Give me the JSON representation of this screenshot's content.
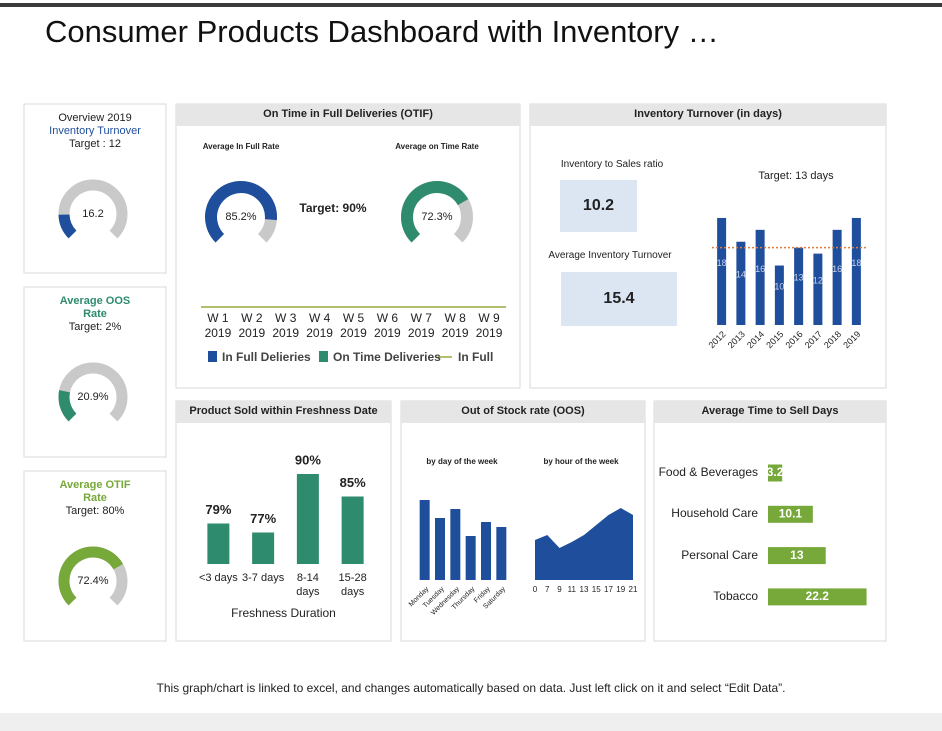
{
  "title": "Consumer Products Dashboard with Inventory …",
  "footer": "This graph/chart is linked to excel, and changes automatically based on data. Just left click on it and select “Edit Data”.",
  "chart_data": [
    {
      "type": "gauge",
      "title": "Overview 2019",
      "subtitle": "Inventory Turnover",
      "target_label": "Target : 12",
      "value": 16.2,
      "ylim": [
        0,
        100
      ],
      "color": "#1f4e9c"
    },
    {
      "type": "gauge",
      "title": "Average OOS Rate",
      "target_label": "Target: 2%",
      "value": 20.9,
      "value_label": "20.9%",
      "ylim": [
        0,
        100
      ],
      "color": "#2e8b6e"
    },
    {
      "type": "gauge",
      "title": "Average OTIF Rate",
      "target_label": "Target: 80%",
      "value": 72.4,
      "value_label": "72.4%",
      "ylim": [
        0,
        100
      ],
      "color": "#77a83a"
    },
    {
      "type": "bar",
      "title": "On Time in Full Deliveries (OTIF)",
      "target_label": "Target: 90%",
      "gauges": [
        {
          "type": "gauge",
          "title": "Average In Full Rate",
          "value": 85.2,
          "value_label": "85.2%",
          "ylim": [
            0,
            100
          ],
          "color": "#1f4e9c"
        },
        {
          "type": "gauge",
          "title": "Average on Time Rate",
          "value": 72.3,
          "value_label": "72.3%",
          "ylim": [
            0,
            100
          ],
          "color": "#2e8b6e"
        }
      ],
      "categories": [
        "W 1 2019",
        "W 2 2019",
        "W 3 2019",
        "W 4 2019",
        "W 5 2019",
        "W 6 2019",
        "W 7 2019",
        "W 8 2019",
        "W 9 2019"
      ],
      "series": [
        {
          "name": "In Full Delieries",
          "color": "#1f4e9c",
          "values": [
            null,
            null,
            null,
            null,
            null,
            null,
            null,
            null,
            null
          ]
        },
        {
          "name": "On Time Deliveries",
          "color": "#2e8b6e",
          "values": [
            null,
            null,
            null,
            null,
            null,
            null,
            null,
            null,
            null
          ]
        },
        {
          "name": "In Full",
          "color": "#9aa83a",
          "type": "line",
          "values": [
            null,
            null,
            null,
            null,
            null,
            null,
            null,
            null,
            null
          ]
        }
      ]
    },
    {
      "type": "bar",
      "title": "Inventory Turnover (in days)",
      "kpis": [
        {
          "label": "Inventory to Sales ratio",
          "value": 10.2
        },
        {
          "label": "Average Inventory Turnover",
          "value": 15.4
        }
      ],
      "subtitle": "Target: 13 days",
      "target": 13,
      "categories": [
        "2012",
        "2013",
        "2014",
        "2015",
        "2016",
        "2017",
        "2018",
        "2019"
      ],
      "values": [
        18,
        14,
        16,
        10,
        13,
        12,
        16,
        18
      ],
      "color": "#1f4e9c",
      "ylim": [
        0,
        19
      ]
    },
    {
      "type": "bar",
      "title": "Product Sold within Freshness Date",
      "categories": [
        "<3 days",
        "3-7 days",
        "8-14 days",
        "15-28 days"
      ],
      "values": [
        79,
        77,
        90,
        85
      ],
      "value_labels": [
        "79%",
        "77%",
        "90%",
        "85%"
      ],
      "xlabel": "Freshness Duration",
      "color": "#2e8b6e",
      "ylim": [
        70,
        92
      ]
    },
    {
      "type": "panel",
      "title": "Out of Stock rate (OOS)",
      "charts": [
        {
          "type": "bar",
          "title": "by day of the week",
          "categories": [
            "Monday",
            "Tuesday",
            "Wednesday",
            "Thursday",
            "Friday",
            "Saturday"
          ],
          "values": [
            80,
            62,
            71,
            44,
            58,
            53
          ],
          "color": "#1f4e9c",
          "ylim": [
            0,
            90
          ]
        },
        {
          "type": "area",
          "title": "by hour of the week",
          "categories": [
            "0",
            "7",
            "9",
            "11",
            "13",
            "15",
            "17",
            "19",
            "21"
          ],
          "values": [
            40,
            45,
            32,
            38,
            45,
            55,
            65,
            72,
            65
          ],
          "color": "#1f4e9c",
          "ylim": [
            0,
            90
          ]
        }
      ]
    },
    {
      "type": "hbar",
      "title": "Average Time to Sell Days",
      "categories": [
        "Food & Beverages",
        "Household Care",
        "Personal Care",
        "Tobacco"
      ],
      "values": [
        3.2,
        10.1,
        13,
        22.2
      ],
      "color": "#77a83a",
      "xlim": [
        0,
        25
      ]
    }
  ]
}
